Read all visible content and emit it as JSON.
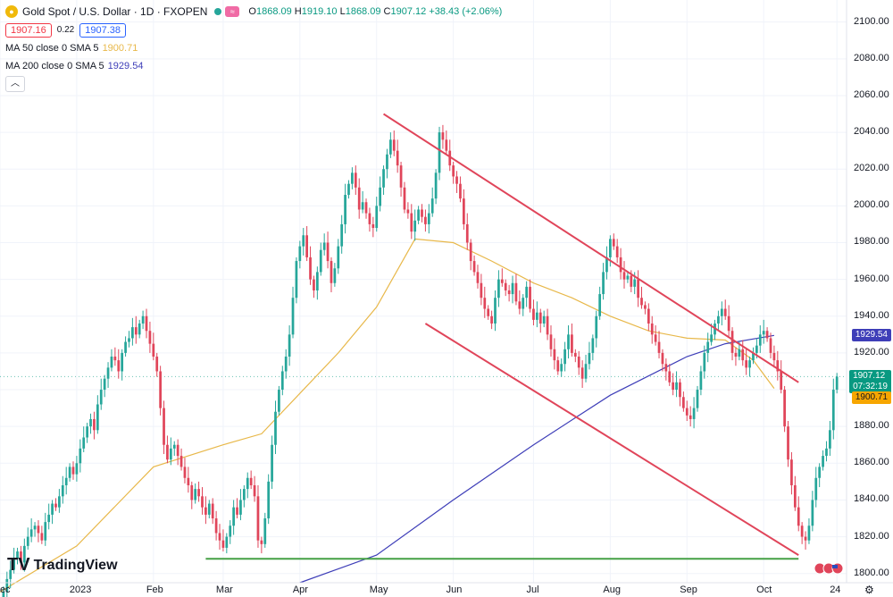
{
  "header": {
    "symbol_title": "Gold Spot / U.S. Dollar · 1D · FXOPEN",
    "symbol_icon": "gold-coin-icon",
    "status_icon": "market-open-dot-icon",
    "badge_icon": "approx-icon",
    "badge_text": "≈",
    "ohlc": {
      "o_label": "O",
      "o": "1868.09",
      "h_label": "H",
      "h": "1919.10",
      "l_label": "L",
      "l": "1868.09",
      "c_label": "C",
      "c": "1907.12",
      "change": "+38.43 (+2.06%)"
    },
    "sell_price": "1907.16",
    "spread": "0.22",
    "buy_price": "1907.38"
  },
  "indicators": [
    {
      "label": "MA 50 close 0 SMA 5",
      "value": "1900.71",
      "color": "#e8b84a"
    },
    {
      "label": "MA 200 close 0 SMA 5",
      "value": "1929.54",
      "color": "#3e3eb8"
    }
  ],
  "price_tags": {
    "ma200": {
      "value": "1929.54",
      "color": "#3e3eb8"
    },
    "last": {
      "value": "1907.12",
      "countdown": "07:32:19",
      "color": "#089981"
    },
    "ma50": {
      "value": "1900.71",
      "color": "#f7a600"
    }
  },
  "branding": {
    "logo_text": "TradingView",
    "logo_mark": "TV"
  },
  "chart_data": {
    "type": "candlestick",
    "title": "Gold Spot / U.S. Dollar · 1D · FXOPEN",
    "y_ticks": [
      1800,
      1820,
      1840,
      1860,
      1880,
      1900,
      1920,
      1940,
      1960,
      1980,
      2000,
      2020,
      2040,
      2060,
      2080,
      2100
    ],
    "ylim": [
      1795,
      2112
    ],
    "x_ticks": [
      "Dec",
      "2023",
      "Feb",
      "Mar",
      "Apr",
      "May",
      "Jun",
      "Jul",
      "Aug",
      "Sep",
      "Oct",
      "24"
    ],
    "x_tick_pos": [
      0,
      22,
      44,
      64,
      86,
      108,
      130,
      153,
      175,
      197,
      219,
      240
    ],
    "x_range": [
      0,
      242
    ],
    "candles_close": [
      1785,
      1790,
      1797,
      1802,
      1808,
      1812,
      1806,
      1815,
      1820,
      1824,
      1826,
      1822,
      1818,
      1828,
      1832,
      1838,
      1836,
      1842,
      1848,
      1852,
      1858,
      1854,
      1860,
      1868,
      1874,
      1880,
      1884,
      1878,
      1892,
      1900,
      1906,
      1912,
      1918,
      1916,
      1910,
      1920,
      1926,
      1928,
      1934,
      1930,
      1936,
      1940,
      1932,
      1925,
      1918,
      1910,
      1890,
      1870,
      1862,
      1868,
      1870,
      1864,
      1858,
      1852,
      1848,
      1840,
      1846,
      1842,
      1836,
      1832,
      1838,
      1830,
      1822,
      1818,
      1814,
      1820,
      1826,
      1836,
      1832,
      1840,
      1846,
      1852,
      1848,
      1842,
      1818,
      1816,
      1830,
      1850,
      1870,
      1888,
      1900,
      1910,
      1918,
      1930,
      1950,
      1970,
      1978,
      1984,
      1972,
      1960,
      1954,
      1964,
      1976,
      1980,
      1970,
      1958,
      1966,
      1978,
      1990,
      2006,
      2012,
      2018,
      2010,
      1998,
      2002,
      1996,
      1990,
      1988,
      2000,
      2010,
      2020,
      2028,
      2036,
      2030,
      2022,
      2010,
      1998,
      1996,
      1986,
      1992,
      1998,
      1994,
      1990,
      1996,
      2004,
      2018,
      2040,
      2036,
      2030,
      2022,
      2016,
      2012,
      2004,
      1990,
      1980,
      1970,
      1964,
      1958,
      1950,
      1944,
      1940,
      1936,
      1950,
      1960,
      1958,
      1954,
      1952,
      1958,
      1948,
      1944,
      1950,
      1956,
      1944,
      1938,
      1942,
      1936,
      1940,
      1930,
      1922,
      1916,
      1910,
      1914,
      1922,
      1930,
      1920,
      1918,
      1912,
      1906,
      1914,
      1920,
      1928,
      1940,
      1952,
      1964,
      1972,
      1982,
      1978,
      1972,
      1964,
      1960,
      1962,
      1956,
      1960,
      1950,
      1946,
      1944,
      1936,
      1930,
      1926,
      1920,
      1914,
      1910,
      1904,
      1900,
      1904,
      1896,
      1890,
      1886,
      1884,
      1890,
      1900,
      1910,
      1920,
      1926,
      1930,
      1936,
      1940,
      1944,
      1940,
      1932,
      1920,
      1918,
      1922,
      1916,
      1912,
      1916,
      1920,
      1924,
      1930,
      1932,
      1928,
      1920,
      1916,
      1910,
      1900,
      1880,
      1862,
      1848,
      1836,
      1826,
      1820,
      1818,
      1826,
      1840,
      1852,
      1858,
      1864,
      1868,
      1878,
      1900,
      1907.12
    ],
    "series": [
      {
        "name": "MA 50 close 0 SMA 5",
        "values_at": [
          [
            0,
            1790
          ],
          [
            22,
            1815
          ],
          [
            44,
            1858
          ],
          [
            64,
            1870
          ],
          [
            75,
            1876
          ],
          [
            86,
            1898
          ],
          [
            97,
            1920
          ],
          [
            108,
            1945
          ],
          [
            119,
            1982
          ],
          [
            130,
            1980
          ],
          [
            141,
            1970
          ],
          [
            153,
            1958
          ],
          [
            164,
            1950
          ],
          [
            175,
            1940
          ],
          [
            186,
            1932
          ],
          [
            197,
            1928
          ],
          [
            208,
            1927
          ],
          [
            216,
            1916
          ],
          [
            222,
            1900.71
          ]
        ],
        "color": "#e8b84a"
      },
      {
        "name": "MA 200 close 0 SMA 5",
        "values_at": [
          [
            86,
            1795
          ],
          [
            108,
            1810
          ],
          [
            130,
            1840
          ],
          [
            153,
            1870
          ],
          [
            175,
            1897
          ],
          [
            197,
            1918
          ],
          [
            208,
            1925
          ],
          [
            222,
            1929.54
          ]
        ],
        "color": "#3e3eb8"
      }
    ],
    "trendlines": [
      {
        "name": "channel-top",
        "from": [
          110,
          2050
        ],
        "to": [
          229,
          1904
        ],
        "color": "#e0455a"
      },
      {
        "name": "channel-bottom",
        "from": [
          122,
          1936
        ],
        "to": [
          229,
          1810
        ],
        "color": "#e0455a"
      },
      {
        "name": "support",
        "from": [
          59,
          1808
        ],
        "to": [
          229,
          1808
        ],
        "color": "#45a045"
      }
    ],
    "last_price": 1907.12
  }
}
